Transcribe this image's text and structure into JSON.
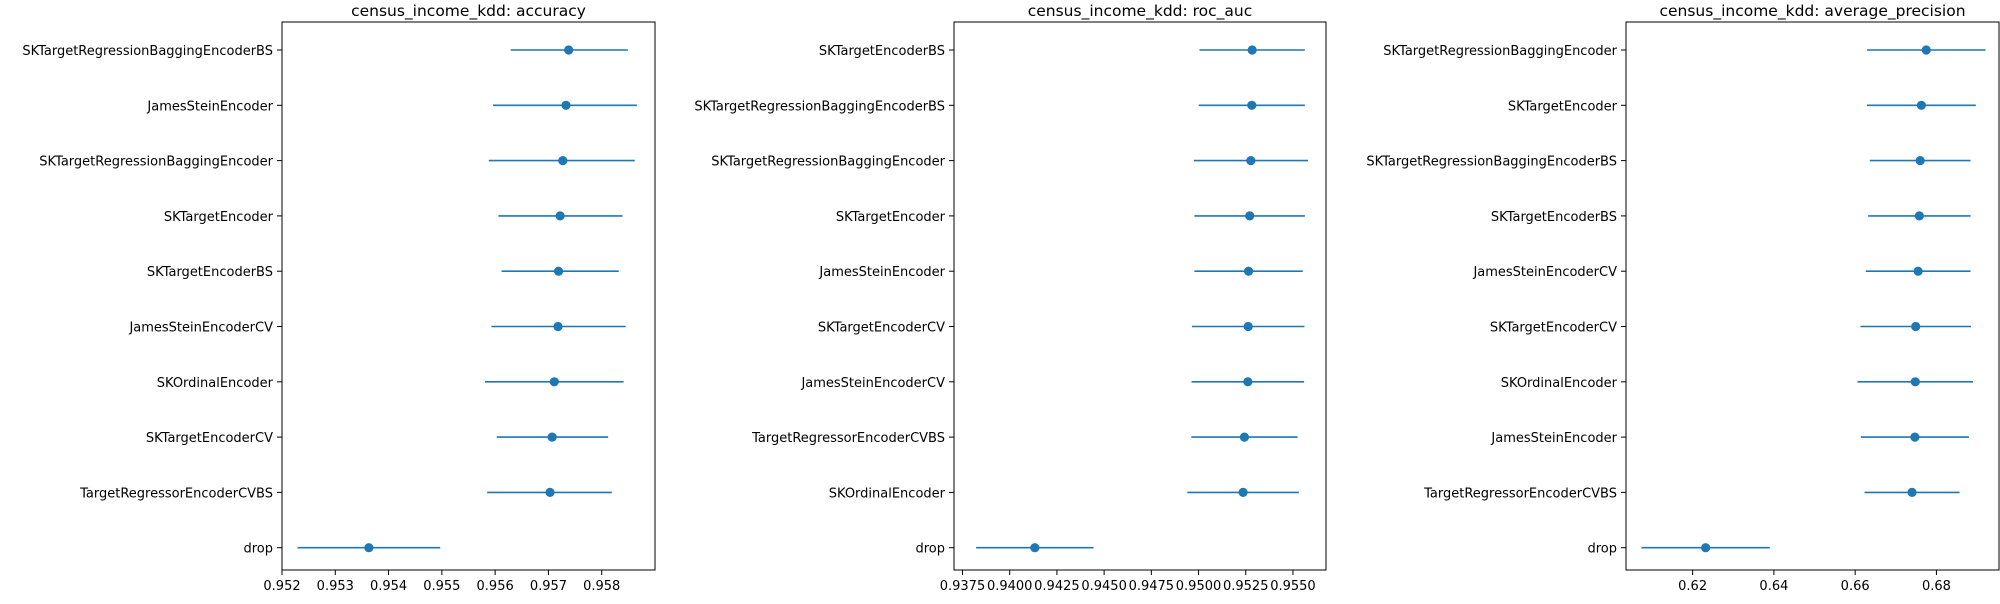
{
  "chart_data": [
    {
      "type": "errorbar",
      "title": "census_income_kdd: accuracy",
      "xlabel": "",
      "ylabel": "",
      "xlim": [
        0.952,
        0.959
      ],
      "xticks": [
        0.952,
        0.953,
        0.954,
        0.955,
        0.956,
        0.957,
        0.958
      ],
      "xtick_labels": [
        "0.952",
        "0.953",
        "0.954",
        "0.955",
        "0.956",
        "0.957",
        "0.958"
      ],
      "color": "#1f77b4",
      "categories": [
        "SKTargetRegressionBaggingEncoderBS",
        "JamesSteinEncoder",
        "SKTargetRegressionBaggingEncoder",
        "SKTargetEncoder",
        "SKTargetEncoderBS",
        "JamesSteinEncoderCV",
        "SKOrdinalEncoder",
        "SKTargetEncoderCV",
        "TargetRegressorEncoderCVBS",
        "drop"
      ],
      "means": [
        0.95738,
        0.95733,
        0.95727,
        0.95722,
        0.95719,
        0.95718,
        0.95711,
        0.95707,
        0.95703,
        0.95363
      ],
      "lower": [
        0.95629,
        0.95596,
        0.95588,
        0.95606,
        0.95612,
        0.95593,
        0.95581,
        0.95603,
        0.95585,
        0.95229
      ],
      "upper": [
        0.95849,
        0.95866,
        0.95862,
        0.95839,
        0.95832,
        0.95845,
        0.95841,
        0.95812,
        0.95819,
        0.95497
      ]
    },
    {
      "type": "errorbar",
      "title": "census_income_kdd: roc_auc",
      "xlabel": "",
      "ylabel": "",
      "xlim": [
        0.93705,
        0.95675
      ],
      "xticks": [
        0.9375,
        0.94,
        0.9425,
        0.945,
        0.9475,
        0.95,
        0.9525,
        0.955
      ],
      "xtick_labels": [
        "0.9375",
        "0.9400",
        "0.9425",
        "0.9450",
        "0.9475",
        "0.9500",
        "0.9525",
        "0.9550"
      ],
      "color": "#1f77b4",
      "categories": [
        "SKTargetEncoderBS",
        "SKTargetRegressionBaggingEncoderBS",
        "SKTargetRegressionBaggingEncoder",
        "SKTargetEncoder",
        "JamesSteinEncoder",
        "SKTargetEncoderCV",
        "JamesSteinEncoderCV",
        "TargetRegressorEncoderCVBS",
        "SKOrdinalEncoder",
        "drop"
      ],
      "means": [
        0.95284,
        0.95282,
        0.95277,
        0.95271,
        0.95265,
        0.95263,
        0.95261,
        0.95243,
        0.95236,
        0.94133
      ],
      "lower": [
        0.95005,
        0.95001,
        0.94975,
        0.94978,
        0.94978,
        0.94965,
        0.94963,
        0.94962,
        0.94941,
        0.93822
      ],
      "upper": [
        0.95563,
        0.95563,
        0.9558,
        0.95563,
        0.95552,
        0.95561,
        0.95559,
        0.95525,
        0.95531,
        0.94444
      ]
    },
    {
      "type": "errorbar",
      "title": "census_income_kdd: average_precision",
      "xlabel": "",
      "ylabel": "",
      "xlim": [
        0.6036,
        0.6954
      ],
      "xticks": [
        0.62,
        0.64,
        0.66,
        0.68
      ],
      "xtick_labels": [
        "0.62",
        "0.64",
        "0.66",
        "0.68"
      ],
      "color": "#1f77b4",
      "categories": [
        "SKTargetRegressionBaggingEncoder",
        "SKTargetEncoder",
        "SKTargetRegressionBaggingEncoderBS",
        "SKTargetEncoderBS",
        "JamesSteinEncoderCV",
        "SKTargetEncoderCV",
        "SKOrdinalEncoder",
        "JamesSteinEncoder",
        "TargetRegressorEncoderCVBS",
        "drop"
      ],
      "means": [
        0.6775,
        0.6763,
        0.676,
        0.6758,
        0.6755,
        0.6749,
        0.6748,
        0.6747,
        0.674,
        0.6232
      ],
      "lower": [
        0.6629,
        0.6629,
        0.6636,
        0.6632,
        0.6626,
        0.6613,
        0.6606,
        0.6614,
        0.6623,
        0.6074
      ],
      "upper": [
        0.6921,
        0.6897,
        0.6884,
        0.6884,
        0.6884,
        0.6885,
        0.689,
        0.688,
        0.6857,
        0.639
      ]
    }
  ]
}
